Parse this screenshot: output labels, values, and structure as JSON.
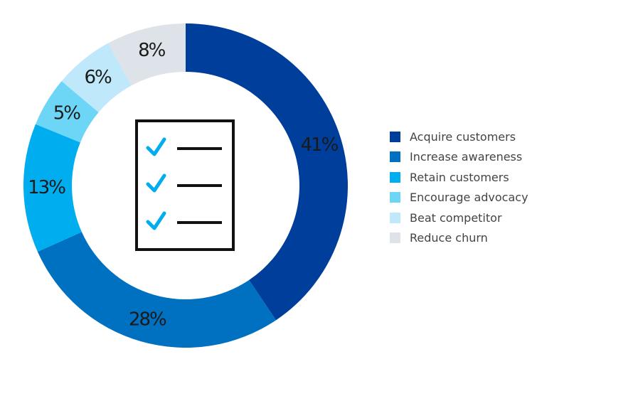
{
  "chart_data": {
    "type": "pie",
    "variant": "donut",
    "start_angle": "12 o'clock",
    "direction": "clockwise",
    "legend_position": "right",
    "center_icon": "checklist-icon",
    "slices": [
      {
        "label": "Acquire customers",
        "value": 41,
        "value_label": "41%",
        "color": "#003e9b"
      },
      {
        "label": "Increase awareness",
        "value": 28,
        "value_label": "28%",
        "color": "#0070c0"
      },
      {
        "label": "Retain customers",
        "value": 13,
        "value_label": "13%",
        "color": "#00aeef"
      },
      {
        "label": "Encourage advocacy",
        "value": 5,
        "value_label": "5%",
        "color": "#6dd5f5"
      },
      {
        "label": "Beat competitor",
        "value": 6,
        "value_label": "6%",
        "color": "#bfe9fa"
      },
      {
        "label": "Reduce churn",
        "value": 8,
        "value_label": "8%",
        "color": "#dde3e8"
      }
    ],
    "icon_colors": {
      "frame": "#111111",
      "check": "#00aeef"
    }
  }
}
